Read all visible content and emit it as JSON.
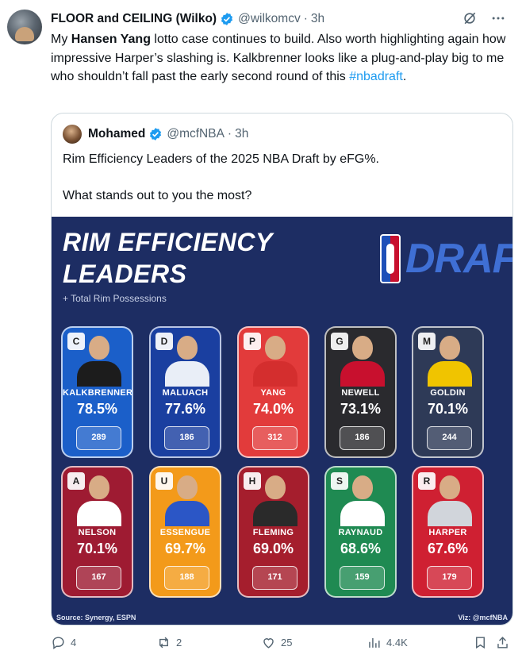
{
  "tweet": {
    "author_name": "FLOOR and CEILING (Wilko)",
    "author_handle": "@wilkomcv",
    "dot": "·",
    "time": "3h",
    "text_parts": {
      "p1": "My ",
      "bold": "Hansen Yang",
      "p2": " lotto case continues to build. Also worth highlighting again how impressive Harper’s slashing is. Kalkbrenner looks like a plug-and-play big to me who shouldn’t fall past the early second round of this ",
      "hashtag": "#nbadraft",
      "p3": "."
    },
    "icons": {
      "grok": "grok-icon",
      "more": "more-icon",
      "verified": "verified-badge-icon"
    }
  },
  "quote": {
    "author_name": "Mohamed",
    "author_handle": "@mcfNBA",
    "dot": "·",
    "time": "3h",
    "text_line1": "Rim Efficiency Leaders of the 2025 NBA Draft by eFG%.",
    "text_line2": "What stands out to you the most?"
  },
  "graphic": {
    "title_line1": "RIM EFFICIENCY",
    "title_line2": "LEADERS",
    "subtitle": "+ Total Rim Possessions",
    "logo_text": "DRAFT",
    "source": "Source: Synergy, ESPN",
    "viz": "Viz: @mcfNBA",
    "players": [
      {
        "name": "KALKBRENNER",
        "efg": "78.5%",
        "poss": "289",
        "color": "#1b5fc9",
        "shirt": "#1c1c1c",
        "chip": "C"
      },
      {
        "name": "MALUACH",
        "efg": "77.6%",
        "poss": "186",
        "color": "#1a3fa0",
        "shirt": "#e9eef7",
        "chip": "D"
      },
      {
        "name": "YANG",
        "efg": "74.0%",
        "poss": "312",
        "color": "#e23b3b",
        "shirt": "#d42e2e",
        "chip": "P"
      },
      {
        "name": "NEWELL",
        "efg": "73.1%",
        "poss": "186",
        "color": "#2a2a2e",
        "shirt": "#c8102e",
        "chip": "G"
      },
      {
        "name": "GOLDIN",
        "efg": "70.1%",
        "poss": "244",
        "color": "#2e3a57",
        "shirt": "#f0c400",
        "chip": "M"
      },
      {
        "name": "NELSON",
        "efg": "70.1%",
        "poss": "167",
        "color": "#9e1b32",
        "shirt": "#ffffff",
        "chip": "A"
      },
      {
        "name": "ESSENGUE",
        "efg": "69.7%",
        "poss": "188",
        "color": "#f39a1a",
        "shirt": "#2b56c6",
        "chip": "U"
      },
      {
        "name": "FLEMING",
        "efg": "69.0%",
        "poss": "171",
        "color": "#a51e2d",
        "shirt": "#2a2a2a",
        "chip": "H"
      },
      {
        "name": "RAYNAUD",
        "efg": "68.6%",
        "poss": "159",
        "color": "#1f8a52",
        "shirt": "#ffffff",
        "chip": "S"
      },
      {
        "name": "HARPER",
        "efg": "67.6%",
        "poss": "179",
        "color": "#cf2032",
        "shirt": "#d1d5db",
        "chip": "R"
      }
    ]
  },
  "actions": {
    "reply_count": "4",
    "repost_count": "2",
    "like_count": "25",
    "views_count": "4.4K"
  }
}
